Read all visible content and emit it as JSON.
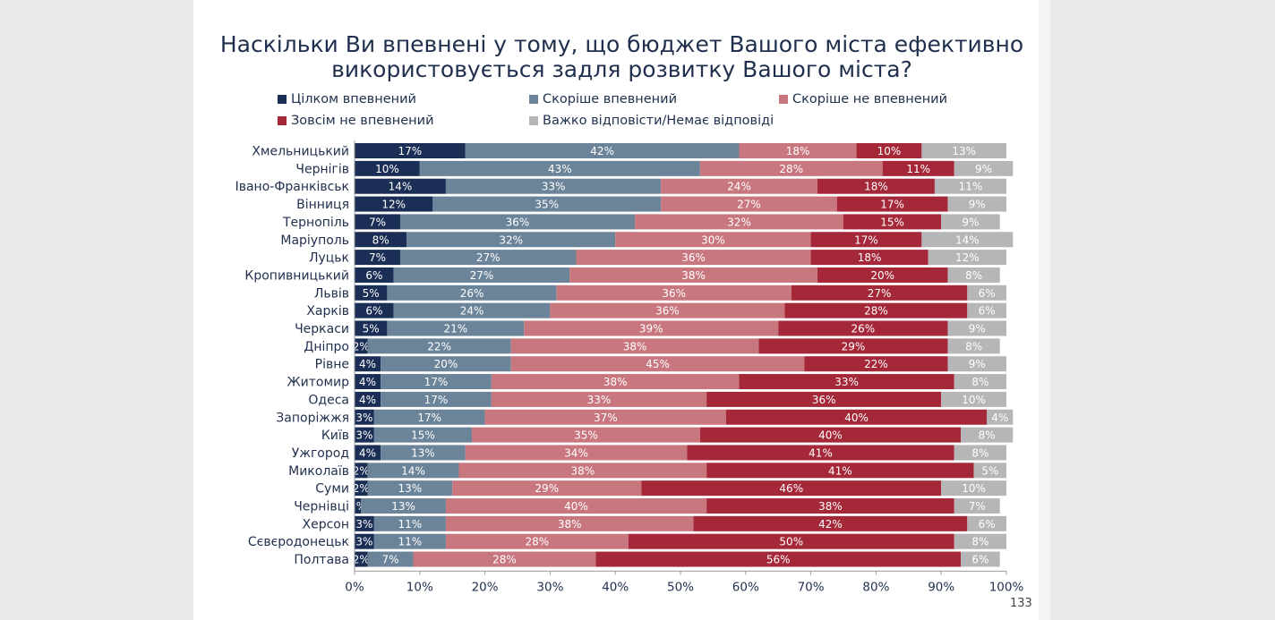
{
  "colors": {
    "full": "#1b2f56",
    "rather": "#6c8499",
    "rather_not": "#c9777f",
    "not_at_all": "#a52838",
    "no_answer": "#b6b6b8"
  },
  "page_number": "133",
  "chart_data": {
    "type": "bar",
    "orientation": "horizontal",
    "stacked": true,
    "title_lines": [
      "Наскільки Ви впевнені у тому, що бюджет Вашого міста ефективно",
      "використовується задля розвитку Вашого міста?"
    ],
    "categories": [
      "Хмельницький",
      "Чернігів",
      "Івано-Франківськ",
      "Вінниця",
      "Тернопіль",
      "Маріуполь",
      "Луцьк",
      "Кропивницький",
      "Львів",
      "Харків",
      "Черкаси",
      "Дніпро",
      "Рівне",
      "Житомир",
      "Одеса",
      "Запоріжжя",
      "Київ",
      "Ужгород",
      "Миколаїв",
      "Суми",
      "Чернівці",
      "Херсон",
      "Сєвєродонецьк",
      "Полтава"
    ],
    "series": [
      {
        "name": "Цілком впевнений",
        "color_key": "full",
        "values": [
          17,
          10,
          14,
          12,
          7,
          8,
          7,
          6,
          5,
          6,
          5,
          2,
          4,
          4,
          4,
          3,
          3,
          4,
          2,
          2,
          1,
          3,
          3,
          2
        ]
      },
      {
        "name": "Скоріше впевнений",
        "color_key": "rather",
        "values": [
          42,
          43,
          33,
          35,
          36,
          32,
          27,
          27,
          26,
          24,
          21,
          22,
          20,
          17,
          17,
          17,
          15,
          13,
          14,
          13,
          13,
          11,
          11,
          7
        ]
      },
      {
        "name": "Скоріше не впевнений",
        "color_key": "rather_not",
        "values": [
          18,
          28,
          24,
          27,
          32,
          30,
          36,
          38,
          36,
          36,
          39,
          38,
          45,
          38,
          33,
          37,
          35,
          34,
          38,
          29,
          40,
          38,
          28,
          28
        ]
      },
      {
        "name": "Зовсім не впевнений",
        "color_key": "not_at_all",
        "values": [
          10,
          11,
          18,
          17,
          15,
          17,
          18,
          20,
          27,
          28,
          26,
          29,
          22,
          33,
          36,
          40,
          40,
          41,
          41,
          46,
          38,
          42,
          50,
          56
        ]
      },
      {
        "name": "Важко відповісти/Немає відповіді",
        "color_key": "no_answer",
        "values": [
          13,
          9,
          11,
          9,
          9,
          14,
          12,
          8,
          6,
          6,
          9,
          8,
          9,
          8,
          10,
          4,
          8,
          8,
          5,
          10,
          7,
          6,
          8,
          6
        ]
      }
    ],
    "legend_position": "top",
    "x_ticks": [
      "0%",
      "10%",
      "20%",
      "30%",
      "40%",
      "50%",
      "60%",
      "70%",
      "80%",
      "90%",
      "100%"
    ],
    "xlim": [
      0,
      100
    ],
    "grid": false
  }
}
